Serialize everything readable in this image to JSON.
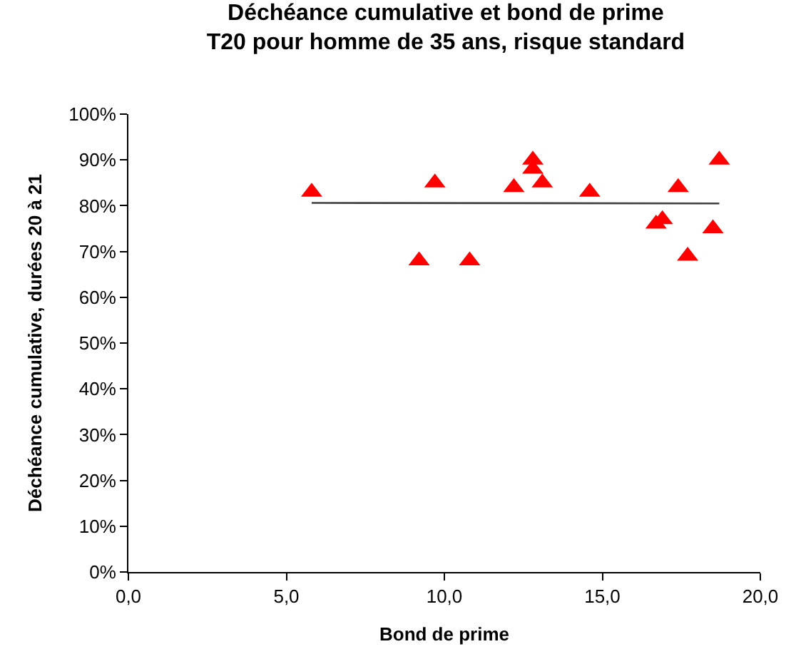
{
  "chart_data": {
    "type": "scatter",
    "title": "Déchéance cumulative et bond de prime\nT20 pour homme de 35 ans, risque standard",
    "xlabel": "Bond de prime",
    "ylabel": "Déchéance cumulative, durées 20 à 21",
    "xlim": [
      0,
      20
    ],
    "xticks": [
      {
        "value": 0,
        "label": "0,0"
      },
      {
        "value": 5,
        "label": "5,0"
      },
      {
        "value": 10,
        "label": "10,0"
      },
      {
        "value": 15,
        "label": "15,0"
      },
      {
        "value": 20,
        "label": "20,0"
      }
    ],
    "ylim": [
      0,
      100
    ],
    "yticks": [
      {
        "value": 0,
        "label": "0%"
      },
      {
        "value": 10,
        "label": "10%"
      },
      {
        "value": 20,
        "label": "20%"
      },
      {
        "value": 30,
        "label": "30%"
      },
      {
        "value": 40,
        "label": "40%"
      },
      {
        "value": 50,
        "label": "50%"
      },
      {
        "value": 60,
        "label": "60%"
      },
      {
        "value": 70,
        "label": "70%"
      },
      {
        "value": 80,
        "label": "80%"
      },
      {
        "value": 90,
        "label": "90%"
      },
      {
        "value": 100,
        "label": "100%"
      }
    ],
    "grid": false,
    "marker": "triangle",
    "series": [
      {
        "color": "#ff0000",
        "x": [
          5.8,
          9.7,
          9.2,
          10.8,
          12.2,
          12.8,
          12.8,
          13.1,
          14.6,
          17.4,
          18.7,
          16.7,
          16.9,
          18.5,
          17.7
        ],
        "values": [
          83,
          85,
          68,
          68,
          84,
          90,
          88,
          85,
          83,
          84,
          90,
          76,
          77,
          75,
          69
        ]
      },
      {
        "type": "line",
        "color": "#404040",
        "marker": "none",
        "x": [
          5.8,
          18.7
        ],
        "values": [
          80.6,
          80.5
        ]
      }
    ]
  }
}
